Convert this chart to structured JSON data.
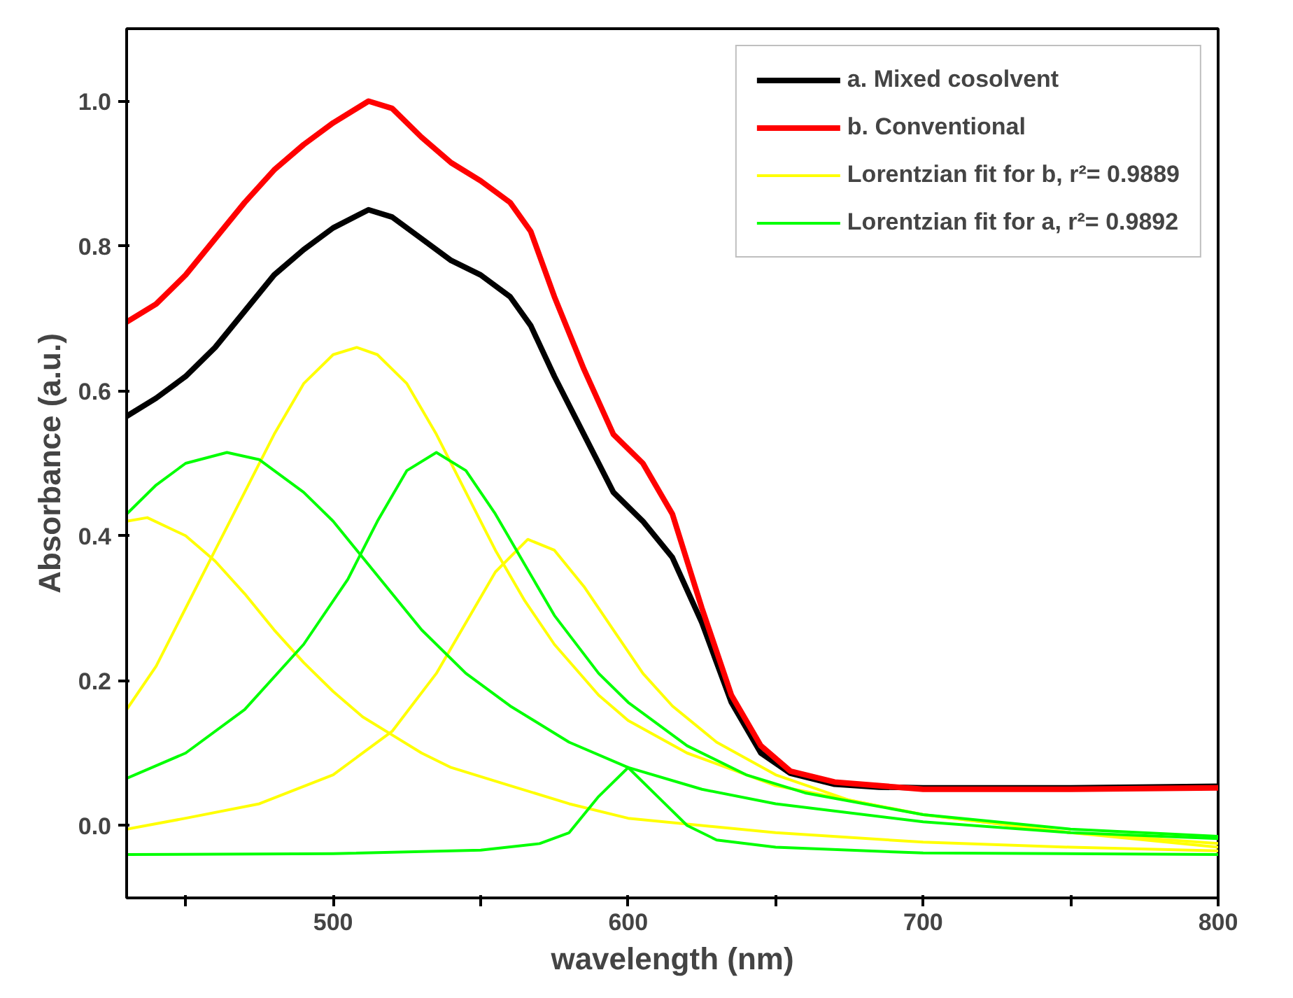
{
  "chart_data": {
    "type": "line",
    "xlabel": "wavelength (nm)",
    "ylabel": "Absorbance (a.u.)",
    "xlim": [
      430,
      800
    ],
    "ylim": [
      -0.1,
      1.1
    ],
    "xticks": [
      {
        "value": 450,
        "label": null
      },
      500,
      {
        "value": 550,
        "label": null
      },
      600,
      {
        "value": 650,
        "label": null
      },
      700,
      {
        "value": 750,
        "label": null
      },
      800
    ],
    "yticks": [
      {
        "value": 0,
        "label": "0.0"
      },
      0.2,
      0.4,
      0.6,
      0.8,
      {
        "value": 1,
        "label": "1.0"
      }
    ],
    "grid": false,
    "legend": "top right",
    "line_style": "solid",
    "marker": "none",
    "series": [
      {
        "name": "a. Mixed cosolvent",
        "color": "#000000",
        "x": [
          430,
          440,
          450,
          460,
          470,
          480,
          490,
          500,
          512,
          520,
          530,
          540,
          550,
          560,
          567,
          575,
          585,
          595,
          605,
          615,
          625,
          635,
          645,
          655,
          670,
          685,
          700,
          750,
          800
        ],
        "values": [
          0.565,
          0.59,
          0.62,
          0.66,
          0.71,
          0.76,
          0.795,
          0.825,
          0.85,
          0.84,
          0.81,
          0.78,
          0.76,
          0.73,
          0.69,
          0.62,
          0.54,
          0.46,
          0.42,
          0.37,
          0.28,
          0.17,
          0.1,
          0.072,
          0.057,
          0.053,
          0.052,
          0.052,
          0.054
        ]
      },
      {
        "name": "b. Conventional",
        "color": "#ff0000",
        "x": [
          430,
          440,
          450,
          460,
          470,
          480,
          490,
          500,
          512,
          520,
          530,
          540,
          550,
          560,
          567,
          575,
          585,
          595,
          605,
          615,
          625,
          635,
          645,
          655,
          670,
          700,
          750,
          800
        ],
        "values": [
          0.695,
          0.72,
          0.76,
          0.81,
          0.86,
          0.905,
          0.94,
          0.97,
          1.0,
          0.99,
          0.95,
          0.915,
          0.89,
          0.86,
          0.82,
          0.73,
          0.63,
          0.54,
          0.5,
          0.43,
          0.3,
          0.18,
          0.11,
          0.075,
          0.06,
          0.05,
          0.05,
          0.052
        ]
      },
      {
        "name": "Lorentzian fit for b, r²= 0.9889",
        "color": "#ffff00",
        "x": [
          430,
          440,
          450,
          460,
          470,
          480,
          490,
          500,
          508,
          515,
          525,
          535,
          545,
          555,
          565,
          575,
          590,
          600,
          620,
          650,
          700,
          750,
          800
        ],
        "values": [
          0.16,
          0.22,
          0.3,
          0.38,
          0.46,
          0.54,
          0.61,
          0.65,
          0.66,
          0.65,
          0.61,
          0.54,
          0.46,
          0.38,
          0.31,
          0.25,
          0.18,
          0.145,
          0.1,
          0.055,
          0.015,
          -0.01,
          -0.025
        ]
      },
      {
        "color": "#ffff00",
        "x": [
          430,
          437,
          450,
          460,
          470,
          480,
          490,
          500,
          510,
          520,
          530,
          540,
          560,
          580,
          600,
          650,
          700,
          750,
          800
        ],
        "values": [
          0.42,
          0.425,
          0.4,
          0.365,
          0.32,
          0.27,
          0.225,
          0.185,
          0.15,
          0.125,
          0.1,
          0.08,
          0.055,
          0.03,
          0.01,
          -0.01,
          -0.023,
          -0.03,
          -0.035
        ]
      },
      {
        "color": "#ffff00",
        "x": [
          430,
          450,
          475,
          500,
          520,
          535,
          545,
          555,
          566,
          575,
          585,
          595,
          605,
          615,
          630,
          650,
          675,
          700,
          750,
          800
        ],
        "values": [
          -0.005,
          0.01,
          0.03,
          0.07,
          0.13,
          0.21,
          0.28,
          0.35,
          0.395,
          0.38,
          0.33,
          0.27,
          0.21,
          0.165,
          0.115,
          0.07,
          0.035,
          0.015,
          -0.01,
          -0.03
        ]
      },
      {
        "name": "Lorentzian fit for a, r²= 0.9892",
        "color": "#00ff00",
        "x": [
          430,
          440,
          450,
          464,
          475,
          490,
          500,
          510,
          520,
          530,
          545,
          560,
          580,
          600,
          625,
          650,
          700,
          750,
          800
        ],
        "values": [
          0.43,
          0.47,
          0.5,
          0.515,
          0.505,
          0.46,
          0.42,
          0.37,
          0.32,
          0.27,
          0.21,
          0.165,
          0.115,
          0.08,
          0.05,
          0.03,
          0.005,
          -0.01,
          -0.018
        ]
      },
      {
        "color": "#00ff00",
        "x": [
          430,
          450,
          470,
          490,
          505,
          515,
          525,
          535,
          545,
          555,
          565,
          575,
          590,
          600,
          620,
          640,
          660,
          700,
          750,
          800
        ],
        "values": [
          0.065,
          0.1,
          0.16,
          0.25,
          0.34,
          0.42,
          0.49,
          0.515,
          0.49,
          0.43,
          0.36,
          0.29,
          0.21,
          0.17,
          0.11,
          0.07,
          0.045,
          0.015,
          -0.005,
          -0.015
        ]
      },
      {
        "color": "#00ff00",
        "x": [
          430,
          500,
          550,
          570,
          580,
          590,
          600,
          610,
          620,
          630,
          650,
          700,
          800
        ],
        "values": [
          -0.04,
          -0.039,
          -0.034,
          -0.025,
          -0.01,
          0.04,
          0.08,
          0.04,
          0.0,
          -0.02,
          -0.03,
          -0.038,
          -0.04
        ]
      }
    ]
  }
}
